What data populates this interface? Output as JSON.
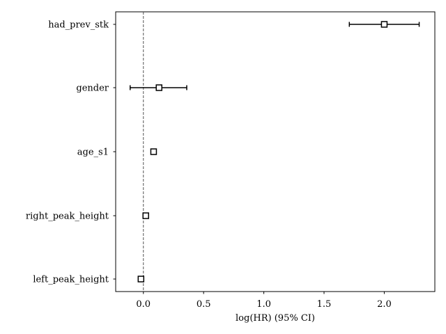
{
  "chart_data": {
    "type": "scatter",
    "title": "",
    "xlabel": "log(HR) (95% CI)",
    "ylabel": "",
    "xlim": [
      -0.23,
      2.42
    ],
    "xticks": [
      0.0,
      0.5,
      1.0,
      1.5,
      2.0
    ],
    "xtick_labels": [
      "0.0",
      "0.5",
      "1.0",
      "1.5",
      "2.0"
    ],
    "reference_line_x": 0.0,
    "grid": false,
    "categories": [
      "had_prev_stk",
      "gender",
      "age_s1",
      "right_peak_height",
      "left_peak_height"
    ],
    "points": [
      {
        "label": "had_prev_stk",
        "coef": 2.0,
        "lower": 1.71,
        "upper": 2.29
      },
      {
        "label": "gender",
        "coef": 0.13,
        "lower": -0.11,
        "upper": 0.36
      },
      {
        "label": "age_s1",
        "coef": 0.085,
        "lower": 0.07,
        "upper": 0.1
      },
      {
        "label": "right_peak_height",
        "coef": 0.02,
        "lower": 0.005,
        "upper": 0.035
      },
      {
        "label": "left_peak_height",
        "coef": -0.02,
        "lower": -0.035,
        "upper": -0.005
      }
    ],
    "colors": {
      "marker_edge": "#000000",
      "marker_face": "#ffffff",
      "errorbar": "#000000",
      "reference_line": "#555555"
    }
  }
}
